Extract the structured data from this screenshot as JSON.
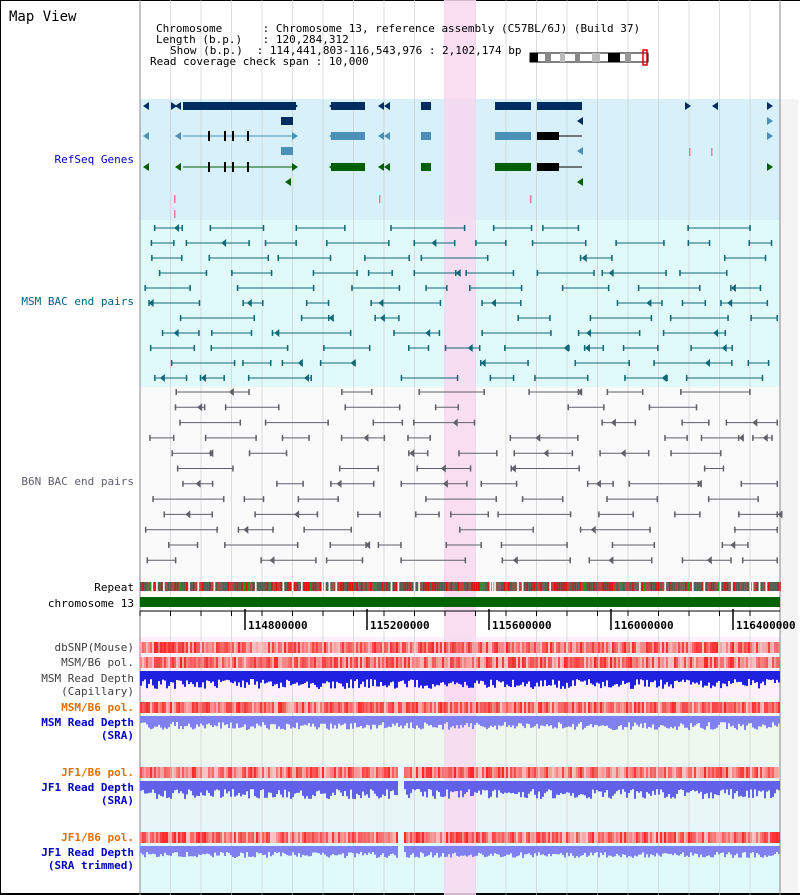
{
  "header": {
    "title": "Map View",
    "chromosome_label": "Chromosome",
    "chromosome_value": "Chromosome 13, reference assembly (C57BL/6J) (Build 37)",
    "length_label": "Length (b.p.)",
    "length_value": "120,284,312",
    "show_label": "Show (b.p.)",
    "show_value": "114,441,803-116,543,976 : 2,102,174 bp",
    "coverage_label": "Read coverage check span",
    "coverage_value": "10,000"
  },
  "tracks": {
    "refseq": "RefSeq Genes",
    "msm_bac": "MSM BAC end pairs",
    "b6n_bac": "B6N BAC end pairs",
    "repeat": "Repeat",
    "chromosome": "chromosome 13",
    "dbsnp": "dbSNP(Mouse)",
    "msm_b6_pol": "MSM/B6 pol.",
    "msm_depth_cap_1": "MSM Read Depth",
    "msm_depth_cap_2": "(Capillary)",
    "msm_b6_pol_sra": "MSM/B6 pol.",
    "msm_depth_sra_1": "MSM Read Depth",
    "msm_depth_sra_2": "(SRA)",
    "jf1_b6_pol": "JF1/B6 pol.",
    "jf1_depth_sra_1": "JF1 Read Depth",
    "jf1_depth_sra_2": "(SRA)",
    "jf1_b6_pol_trim": "JF1/B6 pol.",
    "jf1_depth_trim_1": "JF1 Read Depth",
    "jf1_depth_trim_2": "(SRA trimmed)"
  },
  "axis": {
    "ticks": [
      "114800000",
      "115200000",
      "115600000",
      "116000000",
      "116400000"
    ]
  },
  "colors": {
    "refseq_label": "#0000c0",
    "msm_label": "#006080",
    "b6n_label": "#606070",
    "pol_label": "#e07000",
    "depth_label": "#0000c0",
    "refseq_bg": "#d8f0fa",
    "bac_bg": "#e0fafa",
    "highlight": "#f8d8f0",
    "chromosome_bar": "#006400"
  }
}
